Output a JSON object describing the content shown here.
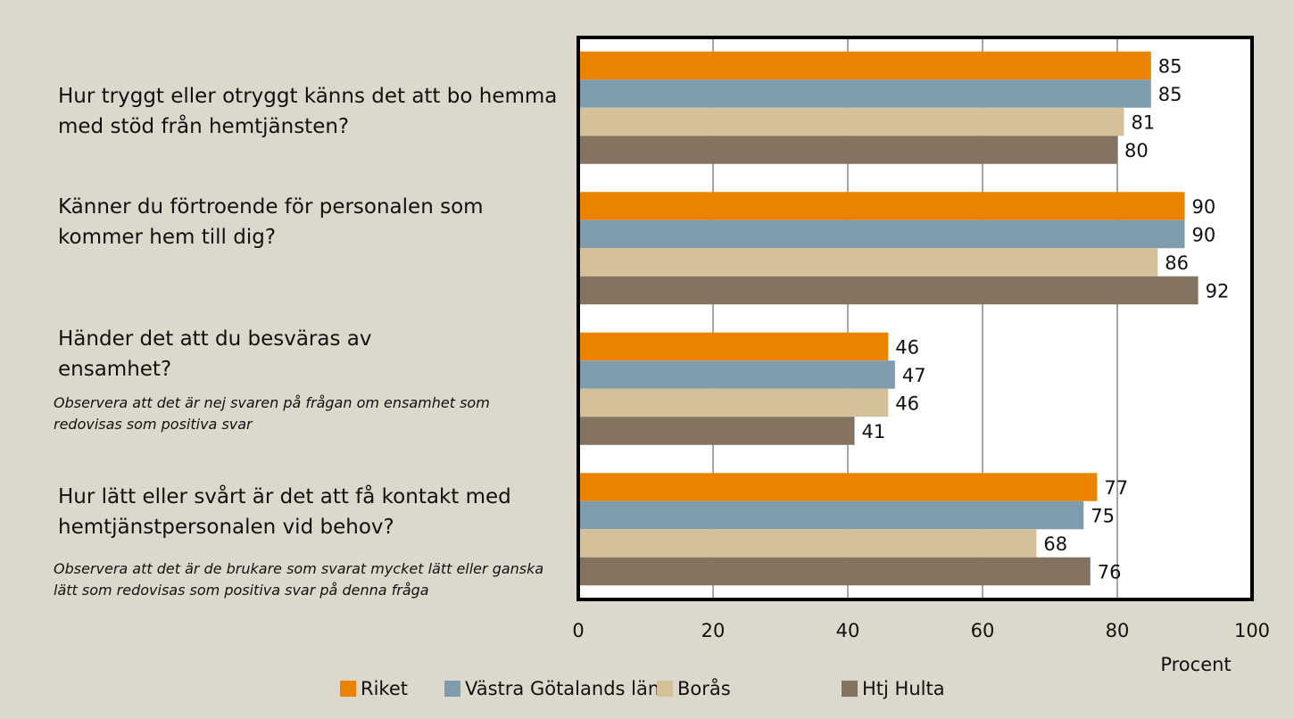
{
  "chart_data": {
    "type": "bar",
    "orientation": "horizontal",
    "categories": [
      "Hur tryggt eller otryggt känns det att bo hemma med stöd från hemtjänsten?",
      "Känner du förtroende för personalen som kommer hem till dig?",
      "Händer det att du besväras av ensamhet?",
      "Hur lätt eller svårt är det att få kontakt med hemtjänstpersonalen vid behov?"
    ],
    "notes": [
      null,
      null,
      "Observera att det är nej svaren på frågan om ensamhet som redovisas som positiva svar",
      "Observera att det är de brukare som svarat mycket lätt eller ganska lätt som redovisas som positiva svar på denna fråga"
    ],
    "series": [
      {
        "name": "Riket",
        "color": "#e98300",
        "values": [
          85,
          90,
          46,
          77
        ]
      },
      {
        "name": "Västra Götalands län",
        "color": "#7f9cad",
        "values": [
          85,
          90,
          47,
          75
        ]
      },
      {
        "name": "Borås",
        "color": "#d4c19a",
        "values": [
          81,
          86,
          46,
          68
        ]
      },
      {
        "name": "Htj Hulta",
        "color": "#857362",
        "values": [
          80,
          92,
          41,
          76
        ]
      }
    ],
    "x_label": "Procent",
    "xlim": [
      0,
      100
    ],
    "xticks": [
      0,
      20,
      40,
      60,
      80,
      100
    ],
    "grid": true,
    "legend": "bottom"
  }
}
